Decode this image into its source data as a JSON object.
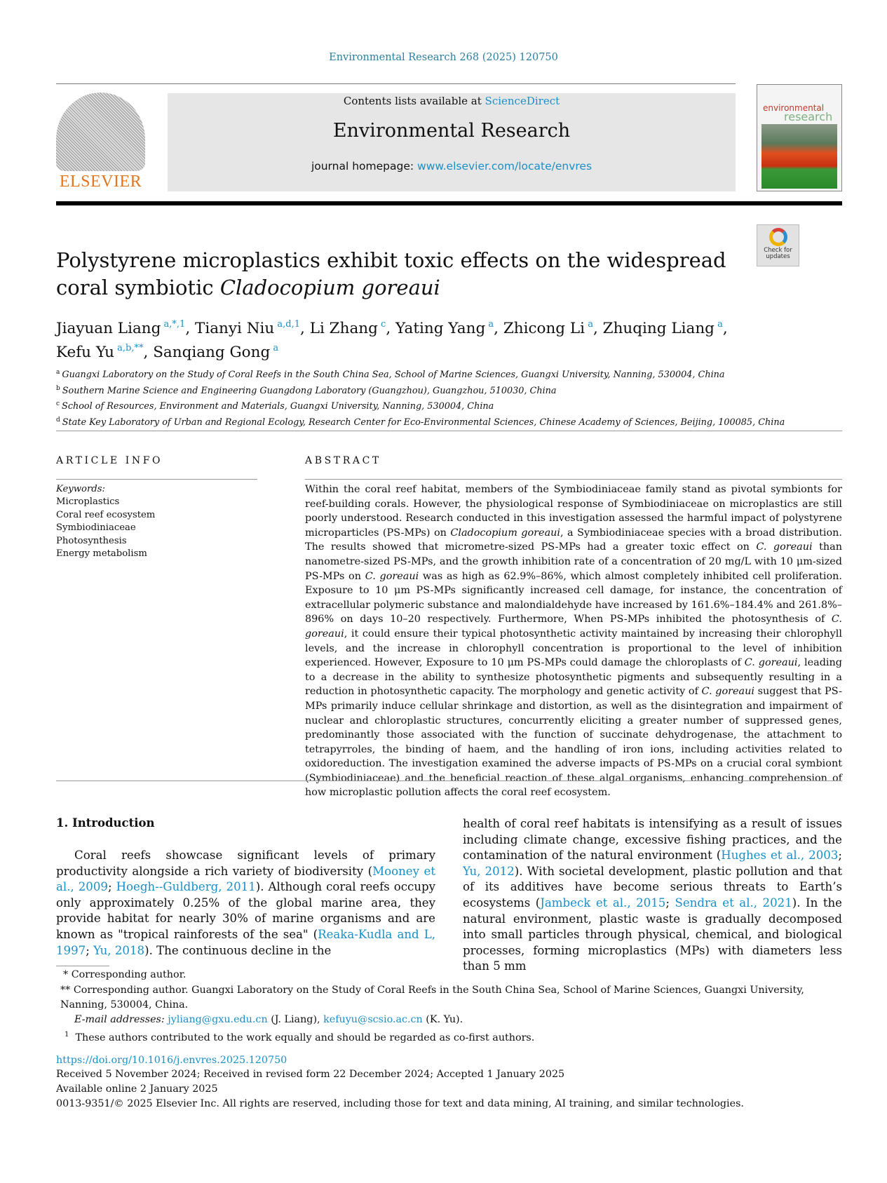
{
  "header": {
    "journal_ref": "Environmental Research 268 (2025) 120750",
    "contents_prefix": "Contents lists available at ",
    "contents_link": "ScienceDirect",
    "journal_title": "Environmental Research",
    "homepage_prefix": "journal homepage: ",
    "homepage_link": "www.elsevier.com/locate/envres",
    "publisher_logo": "ELSEVIER",
    "cover_line1": "environmental",
    "cover_line2": "research",
    "check_updates": "Check for updates"
  },
  "article": {
    "title": [
      {
        "t": "Polystyrene microplastics exhibit toxic effects on the widespread coral symbiotic "
      },
      {
        "t": "Cladocopium goreaui",
        "i": true
      }
    ],
    "authors": [
      {
        "name": "Jiayuan Liang",
        "sup": "a,*,1",
        "sep": ", "
      },
      {
        "name": "Tianyi Niu",
        "sup": "a,d,1",
        "sep": ", "
      },
      {
        "name": "Li Zhang",
        "sup": "c",
        "sep": ", "
      },
      {
        "name": "Yating Yang",
        "sup": "a",
        "sep": ", "
      },
      {
        "name": "Zhicong Li",
        "sup": "a",
        "sep": ", "
      },
      {
        "name": "Zhuqing Liang",
        "sup": "a",
        "sep": ", "
      },
      {
        "name": "Kefu Yu",
        "sup": "a,b,**",
        "sep": ", "
      },
      {
        "name": "Sanqiang Gong",
        "sup": "a",
        "sep": ""
      }
    ],
    "affiliations": [
      {
        "key": "a",
        "text": "Guangxi Laboratory on the Study of Coral Reefs in the South China Sea, School of Marine Sciences, Guangxi University, Nanning, 530004, China"
      },
      {
        "key": "b",
        "text": "Southern Marine Science and Engineering Guangdong Laboratory (Guangzhou), Guangzhou, 510030, China"
      },
      {
        "key": "c",
        "text": "School of Resources, Environment and Materials, Guangxi University, Nanning, 530004, China"
      },
      {
        "key": "d",
        "text": "State Key Laboratory of Urban and Regional Ecology, Research Center for Eco-Environmental Sciences, Chinese Academy of Sciences, Beijing, 100085, China"
      }
    ]
  },
  "article_info": {
    "heading": "ARTICLE INFO",
    "keywords_label": "Keywords:",
    "keywords": [
      "Microplastics",
      "Coral reef ecosystem",
      "Symbiodiniaceae",
      "Photosynthesis",
      "Energy metabolism"
    ]
  },
  "abstract": {
    "heading": "ABSTRACT",
    "text": [
      {
        "t": "Within the coral reef habitat, members of the Symbiodiniaceae family stand as pivotal symbionts for reef-building corals. However, the physiological response of Symbiodiniaceae on microplastics are still poorly understood. Research conducted in this investigation assessed the harmful impact of polystyrene microparticles (PS-MPs) on "
      },
      {
        "t": "Cladocopium goreaui",
        "i": true
      },
      {
        "t": ", a Symbiodiniaceae species with a broad distribution. The results showed that micrometre-sized PS-MPs had a greater toxic effect on "
      },
      {
        "t": "C. goreaui",
        "i": true
      },
      {
        "t": " than nanometre-sized PS-MPs, and the growth inhibition rate of a concentration of 20 mg/L with 10 μm-sized PS-MPs on "
      },
      {
        "t": "C. goreaui",
        "i": true
      },
      {
        "t": " was as high as 62.9%–86%, which almost completely inhibited cell proliferation. Exposure to 10 μm PS-MPs significantly increased cell damage, for instance, the concentration of extracellular polymeric substance and malondialdehyde have increased by 161.6%–184.4% and 261.8%–896% on days 10–20 respectively. Furthermore, When PS-MPs inhibited the photosynthesis of "
      },
      {
        "t": "C. goreaui",
        "i": true
      },
      {
        "t": ", it could ensure their typical photosynthetic activity maintained by increasing their chlorophyll levels, and the increase in chlorophyll concentration is proportional to the level of inhibition experienced. However, Exposure to 10 μm PS-MPs could damage the chloroplasts of "
      },
      {
        "t": "C. goreaui",
        "i": true
      },
      {
        "t": ", leading to a decrease in the ability to synthesize photosynthetic pigments and subsequently resulting in a reduction in photosynthetic capacity. The morphology and genetic activity of "
      },
      {
        "t": "C. goreaui",
        "i": true
      },
      {
        "t": " suggest that PS-MPs primarily induce cellular shrinkage and distortion, as well as the disintegration and impairment of nuclear and chloroplastic structures, concurrently eliciting a greater number of suppressed genes, predominantly those associated with the function of succinate dehydrogenase, the attachment to tetrapyrroles, the binding of haem, and the handling of iron ions, including activities related to oxidoreduction. The investigation examined the adverse impacts of PS-MPs on a crucial coral symbiont (Symbiodiniaceae) and the beneficial reaction of these algal organisms, enhancing comprehension of how microplastic pollution affects the coral reef ecosystem."
      }
    ]
  },
  "introduction": {
    "heading": "1.  Introduction",
    "left": [
      {
        "t": "Coral reefs showcase significant levels of primary productivity alongside a rich variety of biodiversity ("
      },
      {
        "t": "Mooney et al., 2009",
        "l": true
      },
      {
        "t": "; "
      },
      {
        "t": "Hoegh--Guldberg, 2011",
        "l": true
      },
      {
        "t": "). Although coral reefs occupy only approximately 0.25% of the global marine area, they provide habitat for nearly 30% of marine organisms and are known as \"tropical rainforests of the sea\" ("
      },
      {
        "t": "Reaka-Kudla and L, 1997",
        "l": true
      },
      {
        "t": "; "
      },
      {
        "t": "Yu, 2018",
        "l": true
      },
      {
        "t": "). The continuous decline in the"
      }
    ],
    "right": [
      {
        "t": "health of coral reef habitats is intensifying as a result of issues including climate change, excessive fishing practices, and the contamination of the natural environment ("
      },
      {
        "t": "Hughes et al., 2003",
        "l": true
      },
      {
        "t": "; "
      },
      {
        "t": "Yu, 2012",
        "l": true
      },
      {
        "t": "). With societal development, plastic pollution and that of its additives have become serious threats to Earth’s ecosystems ("
      },
      {
        "t": "Jambeck et al., 2015",
        "l": true
      },
      {
        "t": "; "
      },
      {
        "t": "Sendra et al., 2021",
        "l": true
      },
      {
        "t": "). In the natural environment, plastic waste is gradually decomposed into small particles through physical, chemical, and biological processes, forming microplastics (MPs) with diameters less than 5 mm"
      }
    ]
  },
  "footnotes": {
    "corr1": "*  Corresponding author.",
    "corr2": "**  Corresponding author. Guangxi Laboratory on the Study of Coral Reefs in the South China Sea, School of Marine Sciences, Guangxi University, Nanning, 530004, China.",
    "email_label": "E-mail addresses: ",
    "email1": "jyliang@gxu.edu.cn",
    "email1_name": " (J. Liang), ",
    "email2": "kefuyu@scsio.ac.cn",
    "email2_name": " (K. Yu).",
    "equal_sup": "1",
    "equal": "These authors contributed to the work equally and should be regarded as co-first authors."
  },
  "meta": {
    "doi": "https://doi.org/10.1016/j.envres.2025.120750",
    "received": "Received 5 November 2024; Received in revised form 22 December 2024; Accepted 1 January 2025",
    "available": "Available online 2 January 2025",
    "copyright": "0013-9351/© 2025 Elsevier Inc. All rights are reserved, including those for text and data mining, AI training, and similar technologies."
  },
  "colors": {
    "link": "#1a8fc7",
    "journal_ref": "#2a7fa0",
    "elsevier": "#e0761f"
  }
}
